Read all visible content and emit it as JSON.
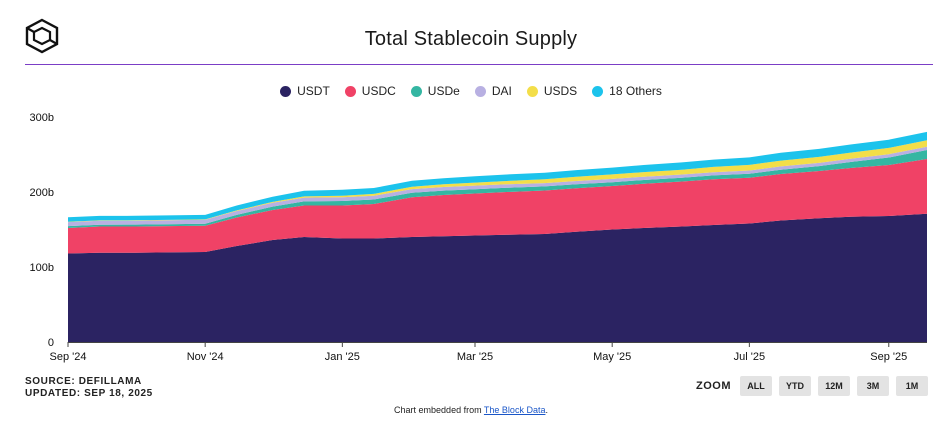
{
  "header": {
    "title": "Total Stablecoin Supply"
  },
  "footer": {
    "source": "SOURCE: DEFILLAMA",
    "updated": "UPDATED: SEP 18, 2025",
    "embed_prefix": "Chart embedded from ",
    "embed_link": "The Block Data",
    "embed_suffix": "."
  },
  "zoom": {
    "label": "ZOOM",
    "buttons": [
      "ALL",
      "YTD",
      "12M",
      "3M",
      "1M"
    ]
  },
  "colors": {
    "accent_rule": "#7b3ec6",
    "USDT": "#2b2362",
    "USDC": "#f04266",
    "USDe": "#34b6a2",
    "DAI": "#b8b0e2",
    "USDS": "#f3de49",
    "18 Others": "#1cc3ec"
  },
  "chart_data": {
    "type": "area",
    "stacked": true,
    "title": "Total Stablecoin Supply",
    "xlabel": "",
    "ylabel": "",
    "x": [
      "2024-09-01",
      "2024-09-15",
      "2024-10-01",
      "2024-10-15",
      "2024-11-01",
      "2024-11-15",
      "2024-12-01",
      "2024-12-15",
      "2025-01-01",
      "2025-01-15",
      "2025-02-01",
      "2025-02-15",
      "2025-03-01",
      "2025-03-15",
      "2025-04-01",
      "2025-04-15",
      "2025-05-01",
      "2025-05-15",
      "2025-06-01",
      "2025-06-15",
      "2025-07-01",
      "2025-07-15",
      "2025-08-01",
      "2025-08-15",
      "2025-09-01",
      "2025-09-18"
    ],
    "series": [
      {
        "name": "USDT",
        "values": [
          118,
          119,
          119,
          119.5,
          120,
          128,
          136,
          140,
          138,
          138,
          140,
          141,
          142,
          143,
          144,
          147,
          150,
          152,
          154,
          156,
          158,
          162,
          165,
          167,
          168,
          171
        ]
      },
      {
        "name": "USDC",
        "values": [
          34,
          35,
          35,
          35,
          35,
          38,
          40,
          42,
          44,
          46,
          53,
          55,
          56,
          57,
          58,
          58,
          58,
          59,
          60,
          61,
          61,
          62,
          63,
          65,
          68,
          73
        ]
      },
      {
        "name": "USDe",
        "values": [
          2.5,
          2.4,
          2.5,
          2.6,
          2.7,
          3.5,
          4.5,
          5.5,
          6,
          6,
          6,
          5.9,
          5.8,
          5.6,
          5.4,
          5.2,
          5,
          5,
          5,
          5.1,
          5.3,
          5.8,
          6.5,
          8,
          10,
          12
        ]
      },
      {
        "name": "DAI",
        "values": [
          5.3,
          5.3,
          5.3,
          5.3,
          5.3,
          5.2,
          5.1,
          5,
          5,
          4.9,
          4.9,
          4.8,
          4.7,
          4.6,
          4.5,
          4.5,
          4.4,
          4.4,
          4.3,
          4.3,
          4.3,
          4.3,
          4.3,
          4.4,
          4.4,
          4.4
        ]
      },
      {
        "name": "USDS",
        "values": [
          0.4,
          0.4,
          0.4,
          0.4,
          0.5,
          0.8,
          1.2,
          1.6,
          2,
          2.5,
          3,
          3.5,
          4,
          4.5,
          5,
          5.5,
          6,
          6.2,
          6.5,
          7,
          7.5,
          7.8,
          8,
          8.2,
          8.4,
          8.5
        ]
      },
      {
        "name": "18 Others",
        "values": [
          6,
          6,
          6,
          6,
          6,
          6.5,
          7,
          7.5,
          8,
          8,
          8,
          8.2,
          8.4,
          8.6,
          8.8,
          9,
          9.2,
          9.4,
          9.6,
          9.8,
          10,
          10.3,
          10.6,
          10.8,
          11,
          11.2
        ]
      }
    ],
    "xticks": [
      {
        "label": "Sep '24",
        "date": "2024-09-01"
      },
      {
        "label": "Nov '24",
        "date": "2024-11-01"
      },
      {
        "label": "Jan '25",
        "date": "2025-01-01"
      },
      {
        "label": "Mar '25",
        "date": "2025-03-01"
      },
      {
        "label": "May '25",
        "date": "2025-05-01"
      },
      {
        "label": "Jul '25",
        "date": "2025-07-01"
      },
      {
        "label": "Sep '25",
        "date": "2025-09-01"
      }
    ],
    "yticks": [
      {
        "label": "0",
        "value": 0
      },
      {
        "label": "100b",
        "value": 100
      },
      {
        "label": "200b",
        "value": 200
      },
      {
        "label": "300b",
        "value": 300
      }
    ],
    "ylim": [
      0,
      300
    ],
    "grid": false,
    "legend": "top-center"
  }
}
